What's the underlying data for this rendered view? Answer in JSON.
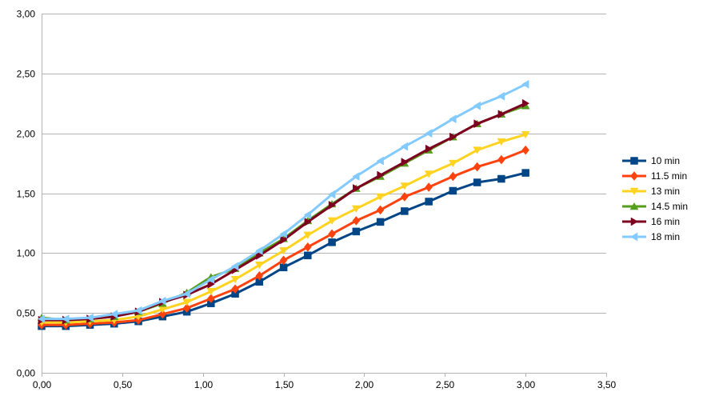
{
  "chart_data": {
    "type": "line",
    "title": "",
    "xlabel": "",
    "ylabel": "",
    "xlim": [
      0,
      3.5
    ],
    "ylim": [
      0,
      3.0
    ],
    "x_ticks": [
      "0,00",
      "0,50",
      "1,00",
      "1,50",
      "2,00",
      "2,50",
      "3,00",
      "3,50"
    ],
    "x_tick_values": [
      0,
      0.5,
      1.0,
      1.5,
      2.0,
      2.5,
      3.0,
      3.5
    ],
    "y_ticks": [
      "0,00",
      "0,50",
      "1,00",
      "1,50",
      "2,00",
      "2,50",
      "3,00"
    ],
    "y_tick_values": [
      0,
      0.5,
      1.0,
      1.5,
      2.0,
      2.5,
      3.0
    ],
    "grid": "horizontal",
    "legend_position": "right",
    "x": [
      0,
      0.15,
      0.3,
      0.45,
      0.6,
      0.75,
      0.9,
      1.05,
      1.2,
      1.35,
      1.5,
      1.65,
      1.8,
      1.95,
      2.1,
      2.25,
      2.4,
      2.55,
      2.7,
      2.85,
      3.0
    ],
    "series": [
      {
        "name": "10 min",
        "color": "#004586",
        "marker": "square",
        "values": [
          0.39,
          0.39,
          0.4,
          0.41,
          0.43,
          0.47,
          0.51,
          0.58,
          0.66,
          0.76,
          0.88,
          0.98,
          1.09,
          1.18,
          1.26,
          1.35,
          1.43,
          1.52,
          1.59,
          1.62,
          1.67
        ]
      },
      {
        "name": "11.5 min",
        "color": "#ff420e",
        "marker": "diamond",
        "values": [
          0.4,
          0.4,
          0.41,
          0.42,
          0.44,
          0.49,
          0.54,
          0.62,
          0.7,
          0.81,
          0.94,
          1.05,
          1.16,
          1.27,
          1.36,
          1.47,
          1.55,
          1.64,
          1.72,
          1.78,
          1.86
        ]
      },
      {
        "name": "13 min",
        "color": "#ffd320",
        "marker": "triangle-down",
        "values": [
          0.42,
          0.42,
          0.43,
          0.44,
          0.47,
          0.53,
          0.59,
          0.68,
          0.78,
          0.9,
          1.02,
          1.15,
          1.27,
          1.37,
          1.47,
          1.56,
          1.66,
          1.75,
          1.86,
          1.93,
          1.99
        ]
      },
      {
        "name": "14.5 min",
        "color": "#579d1c",
        "marker": "triangle-up",
        "values": [
          0.46,
          0.44,
          0.45,
          0.47,
          0.51,
          0.58,
          0.67,
          0.8,
          0.87,
          1.0,
          1.12,
          1.27,
          1.41,
          1.54,
          1.64,
          1.75,
          1.86,
          1.97,
          2.08,
          2.16,
          2.23
        ]
      },
      {
        "name": "16 min",
        "color": "#7e0021",
        "marker": "triangle-right",
        "values": [
          0.44,
          0.44,
          0.45,
          0.47,
          0.51,
          0.59,
          0.65,
          0.74,
          0.86,
          0.98,
          1.11,
          1.26,
          1.4,
          1.54,
          1.65,
          1.76,
          1.87,
          1.97,
          2.08,
          2.16,
          2.25
        ]
      },
      {
        "name": "18 min",
        "color": "#83caff",
        "marker": "triangle-left",
        "values": [
          0.45,
          0.45,
          0.46,
          0.49,
          0.52,
          0.6,
          0.66,
          0.78,
          0.89,
          1.02,
          1.16,
          1.32,
          1.49,
          1.64,
          1.77,
          1.89,
          2.0,
          2.12,
          2.23,
          2.31,
          2.41
        ]
      }
    ]
  }
}
